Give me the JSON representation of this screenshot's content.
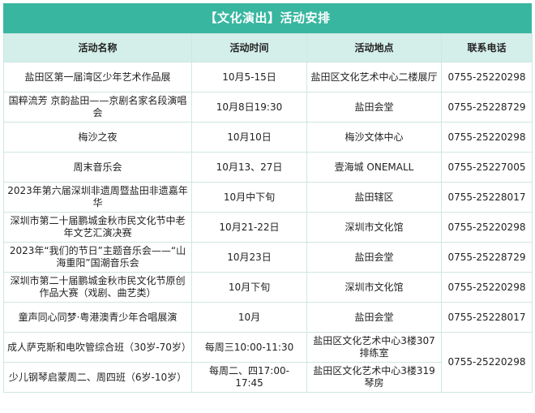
{
  "title": "【文化演出】活动安排",
  "headers": [
    "活动名称",
    "活动时间",
    "活动地点",
    "联系电话"
  ],
  "rows": [
    [
      "盐田区第一届湾区少年艺术作品展",
      "10月5-15日",
      "盐田区文化艺术中心二楼展厅",
      "0755-25220298"
    ],
    [
      "国粹流芳 京韵盐田——京剧名家名段演唱会",
      "10月8日19:30",
      "盐田会堂",
      "0755-25228729"
    ],
    [
      "梅沙之夜",
      "10月10日",
      "梅沙文体中心",
      "0755-25220298"
    ],
    [
      "周末音乐会",
      "10月13、27日",
      "壹海城 ONEMALL",
      "0755-25227005"
    ],
    [
      "2023年第六届深圳非遗周暨盐田非遗嘉年华",
      "10月中下旬",
      "盐田辖区",
      "0755-25228017"
    ],
    [
      "深圳市第二十届鹏城金秋市民文化节中老年文艺汇演决赛",
      "10月21-22日",
      "深圳市文化馆",
      "0755-25220298"
    ],
    [
      "2023年“我们的节日”主题音乐会——“山海重阳”国潮音乐会",
      "10月23日",
      "盐田会堂",
      "0755-25228729"
    ],
    [
      "深圳市第二十届鹏城金秋市民文化节原创作品大赛（戏剧、曲艺类）",
      "10月下旬",
      "深圳市文化馆",
      "0755-25220298"
    ],
    [
      "童声同心同梦·粤港澳青少年合唱展演",
      "10月",
      "盐田会堂",
      "0755-25228017"
    ]
  ],
  "merged_rows": [
    [
      "成人萨克斯和电吹管综合班（30岁-70岁）",
      "每周三10:00-11:30",
      "盐田区文化艺术中心3楼307排练室"
    ],
    [
      "少儿钢琴启蒙周二、周四班（6岁-10岁）",
      "每周二、四17:00-17:45",
      "盐田区文化艺术中心3楼319琴房"
    ]
  ],
  "merged_phone": "0755-25220298"
}
